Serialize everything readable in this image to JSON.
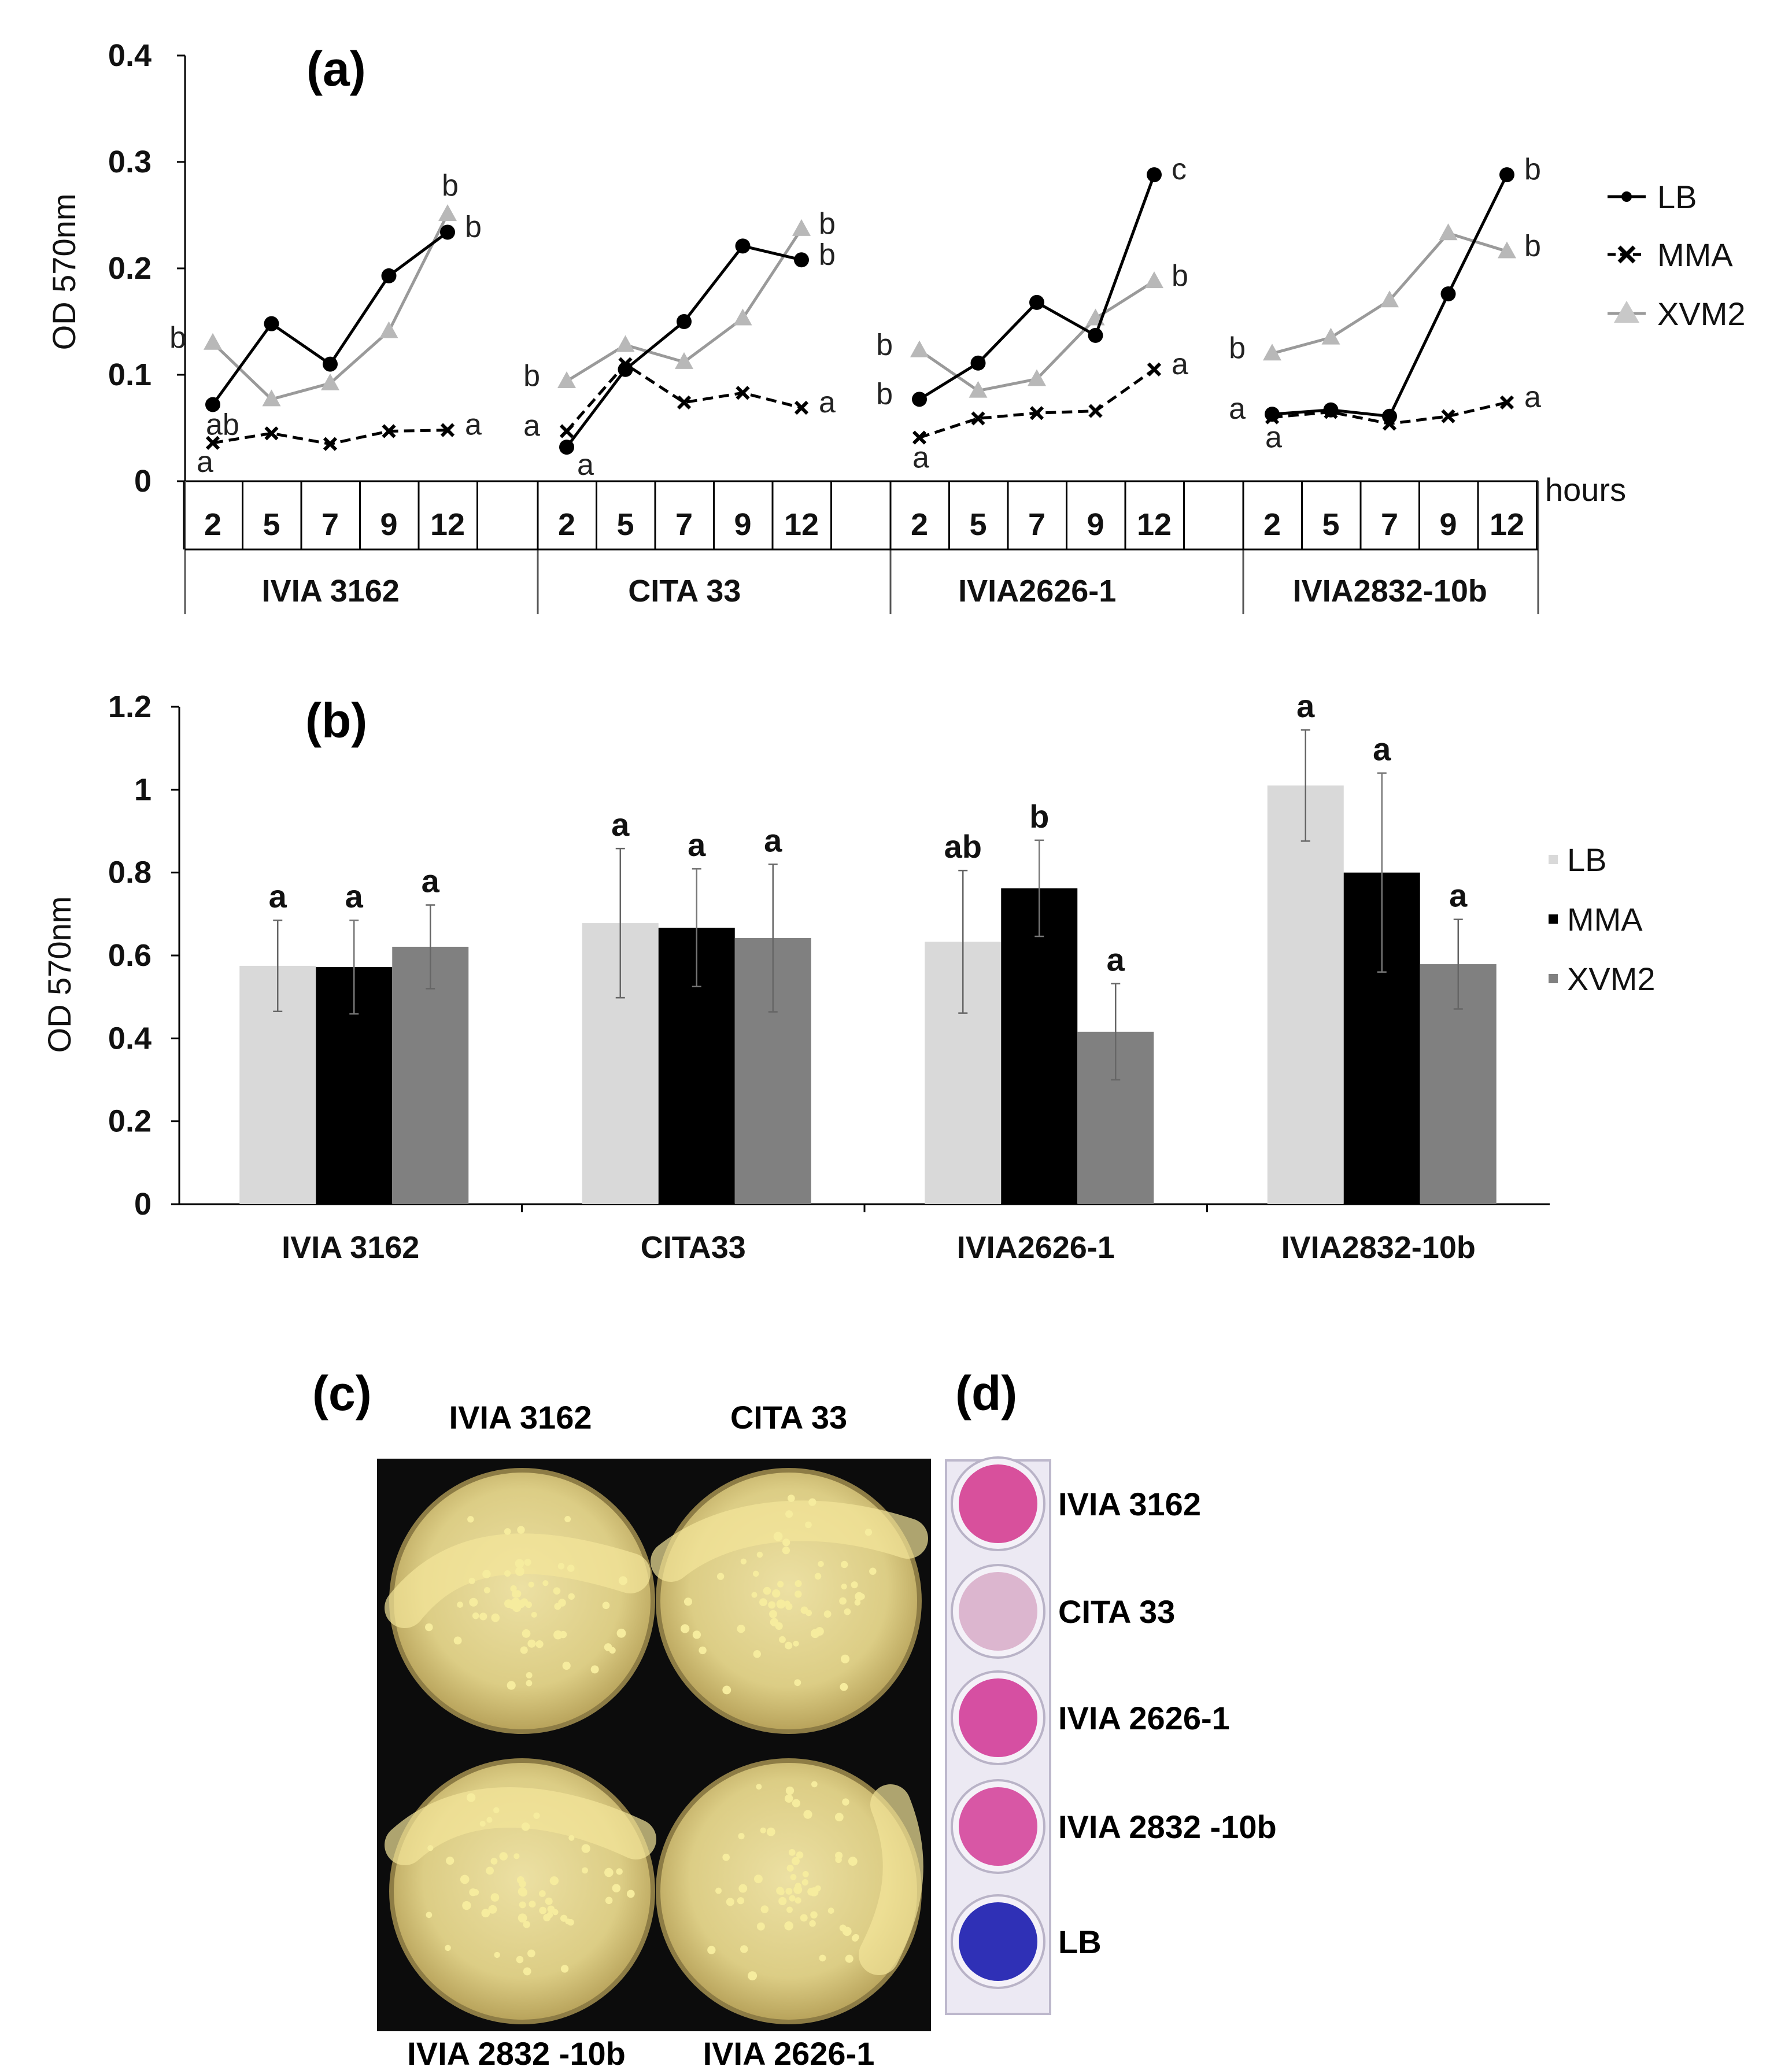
{
  "chart_data": [
    {
      "type": "line",
      "panel": "(a)",
      "ylabel": "OD 570nm",
      "ylim": [
        0,
        0.4
      ],
      "yticks": [
        "0",
        "0.1",
        "0.2",
        "0.3",
        "0.4"
      ],
      "x_unit": "hours",
      "hours": [
        "2",
        "5",
        "7",
        "9",
        "12"
      ],
      "strains": [
        "IVIA 3162",
        "CITA 33",
        "IVIA2626-1",
        "IVIA2832-10b"
      ],
      "legend": [
        "LB",
        "MMA",
        "XVM2"
      ],
      "legend_position": "right",
      "colors": {
        "LB": "#000000",
        "MMA": "#000000",
        "XVM2": "#9a9a9a"
      },
      "series": [
        {
          "name": "LB",
          "groups": [
            [
              0.072,
              0.148,
              0.11,
              0.193,
              0.234
            ],
            [
              0.032,
              0.105,
              0.15,
              0.221,
              0.208
            ],
            [
              0.077,
              0.111,
              0.168,
              0.137,
              0.288
            ],
            [
              0.063,
              0.067,
              0.061,
              0.176,
              0.288
            ]
          ]
        },
        {
          "name": "MMA",
          "groups": [
            [
              0.036,
              0.045,
              0.035,
              0.047,
              0.048
            ],
            [
              0.047,
              0.11,
              0.074,
              0.083,
              0.069
            ],
            [
              0.041,
              0.059,
              0.064,
              0.066,
              0.105
            ],
            [
              0.06,
              0.065,
              0.054,
              0.061,
              0.074
            ]
          ]
        },
        {
          "name": "XVM2",
          "groups": [
            [
              0.13,
              0.077,
              0.092,
              0.141,
              0.251
            ],
            [
              0.094,
              0.128,
              0.112,
              0.153,
              0.237
            ],
            [
              0.123,
              0.085,
              0.096,
              0.153,
              0.188
            ],
            [
              0.12,
              0.135,
              0.17,
              0.233,
              0.216
            ]
          ]
        }
      ],
      "annotations": [
        {
          "group": 0,
          "labels": [
            {
              "text": "b",
              "series": "XVM2",
              "at": 0,
              "side": "left"
            },
            {
              "text": "ab",
              "series": "LB",
              "at": 0,
              "side": "below"
            },
            {
              "text": "a",
              "series": "MMA",
              "at": 0,
              "side": "belowleft"
            },
            {
              "text": "b",
              "series": "XVM2",
              "at": 4,
              "side": "above"
            },
            {
              "text": "b",
              "series": "LB",
              "at": 4,
              "side": "right"
            },
            {
              "text": "a",
              "series": "MMA",
              "at": 4,
              "side": "right"
            }
          ]
        },
        {
          "group": 1,
          "labels": [
            {
              "text": "b",
              "series": "XVM2",
              "at": 0,
              "side": "left"
            },
            {
              "text": "a",
              "series": "MMA",
              "at": 0,
              "side": "left"
            },
            {
              "text": "a",
              "series": "LB",
              "at": 0,
              "side": "belowright"
            },
            {
              "text": "b",
              "series": "XVM2",
              "at": 4,
              "side": "right"
            },
            {
              "text": "b",
              "series": "LB",
              "at": 4,
              "side": "right"
            },
            {
              "text": "a",
              "series": "MMA",
              "at": 4,
              "side": "right"
            }
          ]
        },
        {
          "group": 2,
          "labels": [
            {
              "text": "b",
              "series": "XVM2",
              "at": 0,
              "side": "left"
            },
            {
              "text": "b",
              "series": "LB",
              "at": 0,
              "side": "left"
            },
            {
              "text": "a",
              "series": "MMA",
              "at": 0,
              "side": "below"
            },
            {
              "text": "c",
              "series": "LB",
              "at": 4,
              "side": "right"
            },
            {
              "text": "b",
              "series": "XVM2",
              "at": 4,
              "side": "right"
            },
            {
              "text": "a",
              "series": "MMA",
              "at": 4,
              "side": "right"
            }
          ]
        },
        {
          "group": 3,
          "labels": [
            {
              "text": "b",
              "series": "XVM2",
              "at": 0,
              "side": "left"
            },
            {
              "text": "a",
              "series": "LB",
              "at": 0,
              "side": "left"
            },
            {
              "text": "a",
              "series": "MMA",
              "at": 0,
              "side": "below"
            },
            {
              "text": "b",
              "series": "LB",
              "at": 4,
              "side": "right"
            },
            {
              "text": "b",
              "series": "XVM2",
              "at": 4,
              "side": "right"
            },
            {
              "text": "a",
              "series": "MMA",
              "at": 4,
              "side": "right"
            }
          ]
        }
      ]
    },
    {
      "type": "bar",
      "panel": "(b)",
      "ylabel": "OD 570nm",
      "ylim": [
        0,
        1.2
      ],
      "yticks": [
        "0",
        "0.2",
        "0.4",
        "0.6",
        "0.8",
        "1",
        "1.2"
      ],
      "categories": [
        "IVIA 3162",
        "CITA33",
        "IVIA2626-1",
        "IVIA2832-10b"
      ],
      "legend": [
        "LB",
        "MMA",
        "XVM2"
      ],
      "legend_position": "right",
      "colors": {
        "LB": "#d9d9d9",
        "MMA": "#000000",
        "XVM2": "#808080"
      },
      "series": [
        {
          "name": "LB",
          "values": [
            0.575,
            0.678,
            0.633,
            1.01
          ],
          "errors": [
            0.11,
            0.18,
            0.172,
            0.134
          ],
          "letters": [
            "a",
            "a",
            "ab",
            "a"
          ]
        },
        {
          "name": "MMA",
          "values": [
            0.572,
            0.667,
            0.762,
            0.8
          ],
          "errors": [
            0.113,
            0.142,
            0.116,
            0.24
          ],
          "letters": [
            "a",
            "a",
            "b",
            "a"
          ]
        },
        {
          "name": "XVM2",
          "values": [
            0.621,
            0.642,
            0.416,
            0.579
          ],
          "errors": [
            0.101,
            0.178,
            0.116,
            0.108
          ],
          "letters": [
            "a",
            "a",
            "a",
            "a"
          ]
        }
      ]
    }
  ],
  "panel_c": {
    "label": "(c)",
    "top_labels": [
      "IVIA 3162",
      "CITA 33"
    ],
    "bottom_labels": [
      "IVIA 2832 -10b",
      "IVIA 2626-1"
    ]
  },
  "panel_d": {
    "label": "(d)",
    "wells": [
      {
        "label": "IVIA 3162",
        "color": "#d8509c"
      },
      {
        "label": "CITA 33",
        "color": "#dcb6cf"
      },
      {
        "label": "IVIA 2626-1",
        "color": "#d64fa2"
      },
      {
        "label": "IVIA 2832 -10b",
        "color": "#d857a5"
      },
      {
        "label": "LB",
        "color": "#2f30b6"
      }
    ]
  }
}
